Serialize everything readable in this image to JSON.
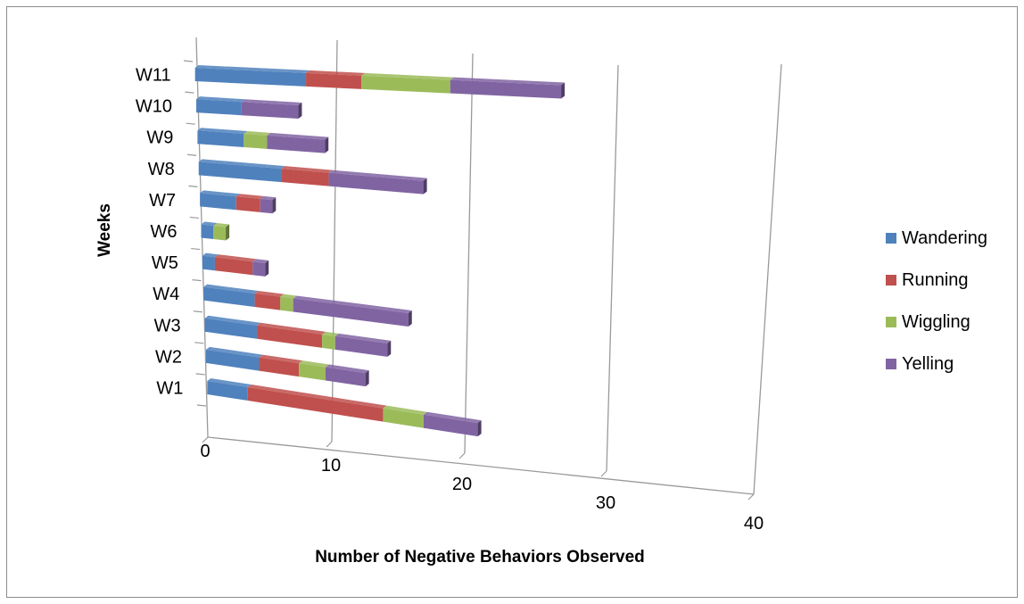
{
  "chart_data": {
    "type": "bar",
    "orientation": "horizontal",
    "stacked": true,
    "three_d": true,
    "categories": [
      "W1",
      "W2",
      "W3",
      "W4",
      "W5",
      "W6",
      "W7",
      "W8",
      "W9",
      "W10",
      "W11"
    ],
    "series": [
      {
        "name": "Wandering",
        "color": "#4F81BD",
        "values": [
          3,
          4,
          4,
          4,
          1,
          1,
          3,
          7,
          4,
          4,
          10
        ]
      },
      {
        "name": "Running",
        "color": "#C0504D",
        "values": [
          10,
          3,
          5,
          2,
          3,
          0,
          2,
          4,
          0,
          0,
          5
        ]
      },
      {
        "name": "Wiggling",
        "color": "#9BBB59",
        "values": [
          3,
          2,
          1,
          1,
          0,
          1,
          0,
          0,
          2,
          0,
          8
        ]
      },
      {
        "name": "Yelling",
        "color": "#8064A2",
        "values": [
          4,
          3,
          4,
          9,
          1,
          0,
          1,
          8,
          5,
          5,
          10
        ]
      }
    ],
    "xlabel": "Number of Negative Behaviors Observed",
    "ylabel": "Weeks",
    "xlim": [
      0,
      40
    ],
    "xticks": [
      "0",
      "10",
      "20",
      "30",
      "40"
    ],
    "grid": true,
    "legend_position": "right"
  }
}
